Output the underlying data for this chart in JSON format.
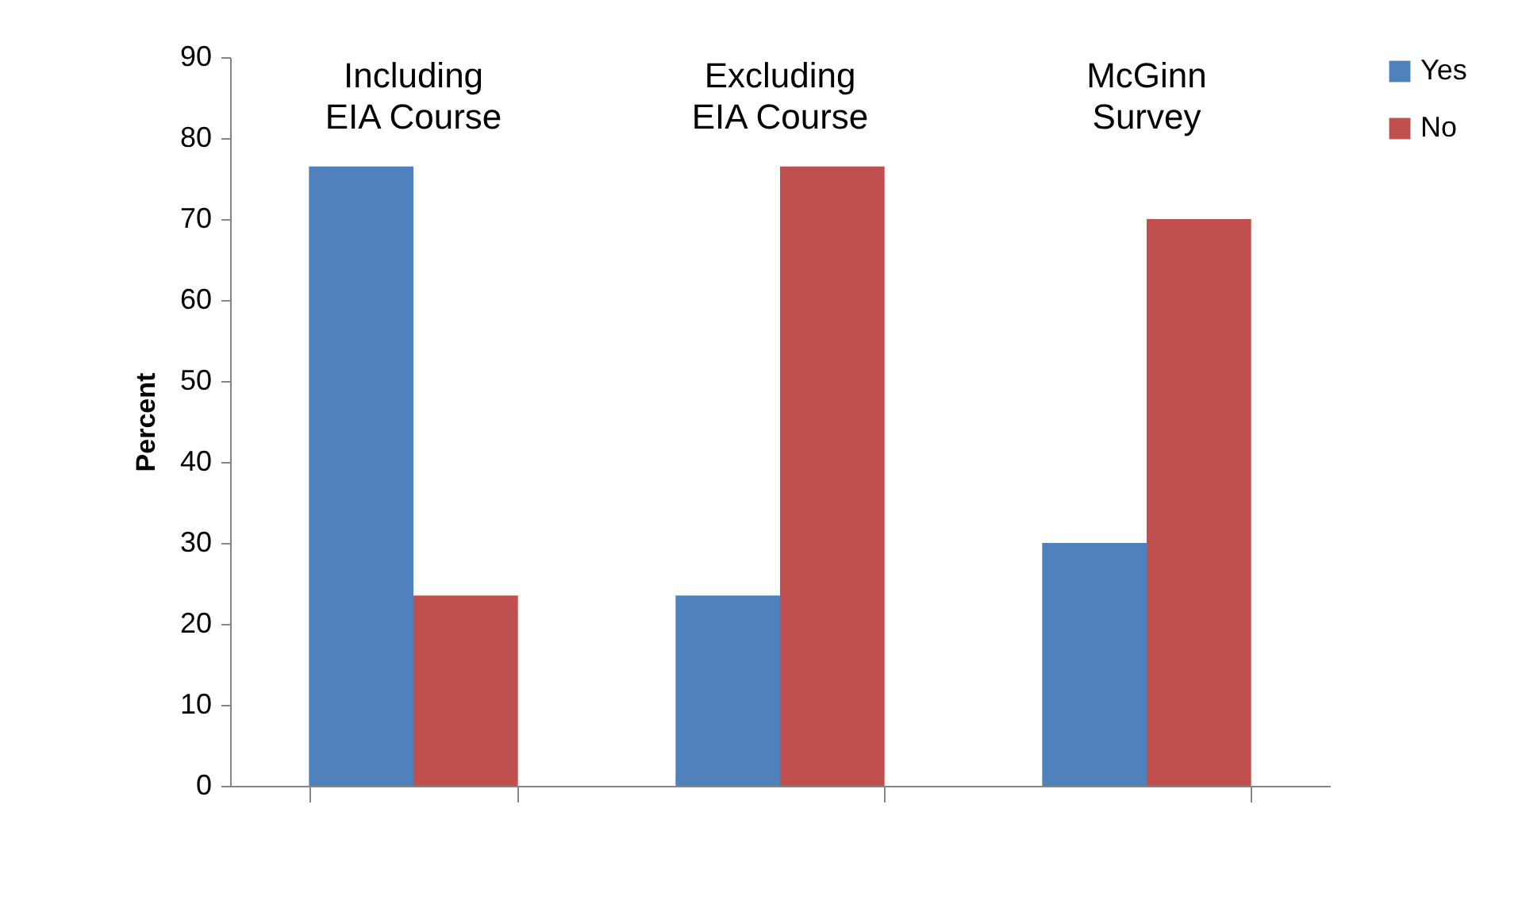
{
  "chart_data": {
    "type": "bar",
    "categories": [
      "Including EIA Course",
      "Excluding EIA Course",
      "McGinn Survey"
    ],
    "series": [
      {
        "name": "Yes",
        "color": "#4f81bd",
        "values": [
          76.5,
          23.5,
          30
        ]
      },
      {
        "name": "No",
        "color": "#c0504d",
        "values": [
          23.5,
          76.5,
          70
        ]
      }
    ],
    "ylabel": "Percent",
    "ylim": [
      0,
      90
    ],
    "yticks": [
      0,
      10,
      20,
      30,
      40,
      50,
      60,
      70,
      80,
      90
    ],
    "grid": false,
    "legend": "right"
  }
}
